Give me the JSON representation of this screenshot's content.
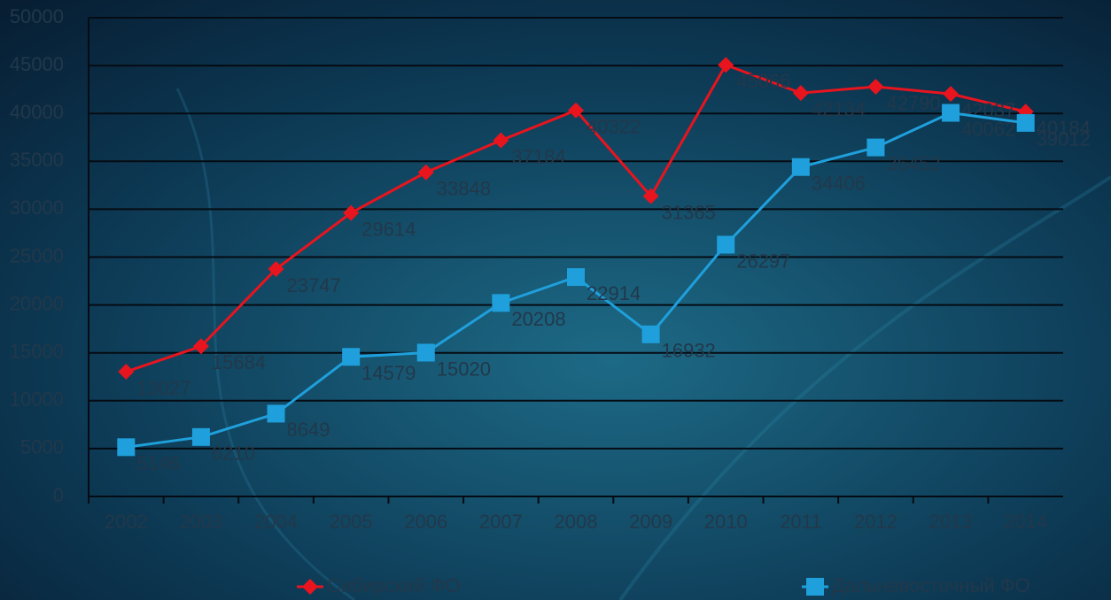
{
  "chart_data": {
    "type": "line",
    "categories": [
      "2002",
      "2003",
      "2004",
      "2005",
      "2006",
      "2007",
      "2008",
      "2009",
      "2010",
      "2011",
      "2012",
      "2013",
      "2014"
    ],
    "series": [
      {
        "name": "Сибирский ФО",
        "color": "#e8141e",
        "marker": "diamond",
        "values": [
          13027,
          15684,
          23747,
          29614,
          33848,
          37184,
          40322,
          31365,
          45066,
          42134,
          42790,
          42037,
          40184
        ]
      },
      {
        "name": "Дальневосточный ФО",
        "color": "#1fa0dc",
        "marker": "square",
        "values": [
          5146,
          6210,
          8649,
          14579,
          15020,
          20208,
          22914,
          16932,
          26297,
          34406,
          36452,
          40062,
          39012
        ]
      }
    ],
    "ylim": [
      0,
      50000
    ],
    "yticks": [
      0,
      5000,
      10000,
      15000,
      20000,
      25000,
      30000,
      35000,
      40000,
      45000,
      50000
    ],
    "grid": true,
    "legend": "bottom"
  }
}
